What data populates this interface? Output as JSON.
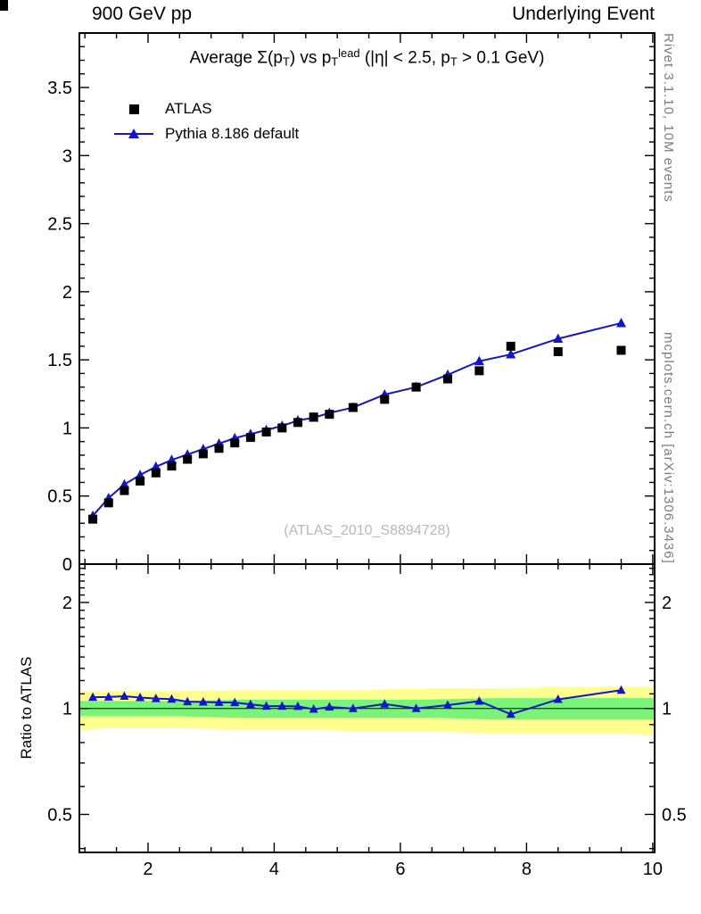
{
  "header": {
    "left": "900 GeV pp",
    "right": "Underlying Event"
  },
  "right_margin": {
    "top_text": "Rivet 3.1.10,  10M events",
    "bottom_text": "mcplots.cern.ch [arXiv:1306.3436]"
  },
  "watermark": "(ATLAS_2010_S8894728)",
  "legend": [
    {
      "label": "ATLAS",
      "marker": "square",
      "color": "#000000"
    },
    {
      "label": "Pythia 8.186 default",
      "marker": "triangle-line",
      "color": "#1414cc"
    }
  ],
  "colors": {
    "pythia_blue": "#1414cc",
    "data_black": "#000000",
    "band_yellow": "#ffff8f",
    "band_green": "#79f479",
    "watermark_gray": "#b8b8b8",
    "side_text_gray": "#7d7d7d"
  },
  "chart_data": [
    {
      "type": "scatter",
      "title": "Average Σ(p_{T}) vs p_{T}^{lead} (|η| < 2.5, p_{T} > 0.1 GeV)",
      "xlabel": "",
      "ylabel": "",
      "xlim": [
        0.912,
        10.03
      ],
      "ylim": [
        0,
        3.9
      ],
      "x_ticks": [
        2,
        4,
        6,
        8,
        10
      ],
      "y_ticks": [
        0,
        0.5,
        1,
        1.5,
        2,
        2.5,
        3,
        3.5
      ],
      "grid": false,
      "legend_position": "top-left",
      "series": [
        {
          "name": "ATLAS",
          "marker": "square",
          "color": "#000000",
          "line": false,
          "x": [
            1.125,
            1.375,
            1.625,
            1.875,
            2.125,
            2.375,
            2.625,
            2.875,
            3.125,
            3.375,
            3.625,
            3.875,
            4.125,
            4.375,
            4.625,
            4.875,
            5.25,
            5.75,
            6.25,
            6.75,
            7.25,
            7.75,
            8.5,
            9.5
          ],
          "y": [
            0.33,
            0.45,
            0.54,
            0.61,
            0.67,
            0.72,
            0.77,
            0.81,
            0.85,
            0.89,
            0.93,
            0.97,
            1.0,
            1.04,
            1.08,
            1.1,
            1.15,
            1.21,
            1.3,
            1.36,
            1.42,
            1.6,
            1.56,
            1.57
          ]
        },
        {
          "name": "Pythia 8.186 default",
          "marker": "triangle",
          "color": "#1414cc",
          "line": true,
          "x": [
            1.125,
            1.375,
            1.625,
            1.875,
            2.125,
            2.375,
            2.625,
            2.875,
            3.125,
            3.375,
            3.625,
            3.875,
            4.125,
            4.375,
            4.625,
            4.875,
            5.25,
            5.75,
            6.25,
            6.75,
            7.25,
            7.75,
            8.5,
            9.5
          ],
          "y": [
            0.355,
            0.485,
            0.585,
            0.655,
            0.715,
            0.765,
            0.805,
            0.845,
            0.885,
            0.925,
            0.955,
            0.985,
            1.015,
            1.055,
            1.075,
            1.11,
            1.15,
            1.245,
            1.3,
            1.39,
            1.49,
            1.54,
            1.655,
            1.77
          ]
        }
      ]
    },
    {
      "type": "line",
      "title": "",
      "xlabel": "",
      "ylabel": "Ratio to ATLAS",
      "yscale": "log",
      "xlim": [
        0.912,
        10.03
      ],
      "ylim": [
        0.39,
        2.57
      ],
      "x_ticks": [
        2,
        4,
        6,
        8,
        10
      ],
      "y_ticks": [
        0.5,
        1,
        2
      ],
      "reference_line": 1,
      "bands": {
        "x": [
          0.912,
          1.5,
          2.5,
          3.5,
          4.5,
          5.5,
          6.5,
          7.5,
          8.5,
          9.5,
          10.03
        ],
        "yellow_lo": [
          0.87,
          0.88,
          0.88,
          0.87,
          0.87,
          0.86,
          0.86,
          0.85,
          0.85,
          0.85,
          0.84
        ],
        "yellow_hi": [
          1.12,
          1.12,
          1.12,
          1.13,
          1.13,
          1.13,
          1.14,
          1.14,
          1.15,
          1.15,
          1.15
        ],
        "green_lo": [
          0.95,
          0.95,
          0.95,
          0.94,
          0.94,
          0.94,
          0.94,
          0.93,
          0.93,
          0.93,
          0.93
        ],
        "green_hi": [
          1.05,
          1.05,
          1.05,
          1.06,
          1.06,
          1.06,
          1.06,
          1.07,
          1.07,
          1.07,
          1.07
        ]
      },
      "series": [
        {
          "name": "Pythia 8.186 default / ATLAS",
          "marker": "triangle",
          "color": "#1414cc",
          "line": true,
          "x": [
            1.125,
            1.375,
            1.625,
            1.875,
            2.125,
            2.375,
            2.625,
            2.875,
            3.125,
            3.375,
            3.625,
            3.875,
            4.125,
            4.375,
            4.625,
            4.875,
            5.25,
            5.75,
            6.25,
            6.75,
            7.25,
            7.75,
            8.5,
            9.5
          ],
          "y": [
            1.076,
            1.078,
            1.083,
            1.074,
            1.067,
            1.063,
            1.045,
            1.043,
            1.041,
            1.039,
            1.027,
            1.015,
            1.015,
            1.014,
            0.995,
            1.009,
            1.0,
            1.029,
            1.0,
            1.022,
            1.049,
            0.963,
            1.061,
            1.127
          ]
        }
      ]
    }
  ]
}
